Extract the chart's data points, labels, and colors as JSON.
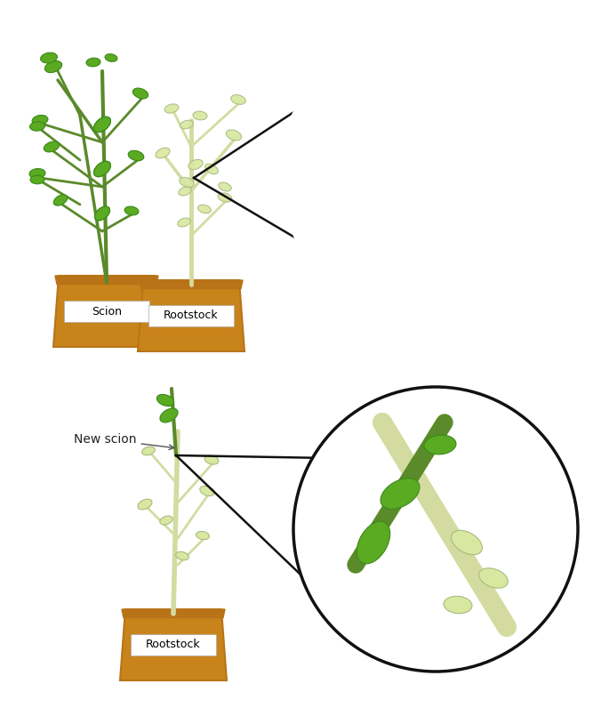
{
  "background_color": "#ffffff",
  "pot_color": "#c8841a",
  "pot_rim_color": "#b87318",
  "pot_label_color": "#000000",
  "stem_green": "#5a8a2a",
  "stem_light": "#d4dba0",
  "leaf_green": "#5aaa22",
  "leaf_light": "#d8e8a0",
  "leaf_dark_green": "#3a8a18",
  "circle_outline": "#111111",
  "line_color": "#111111",
  "label_scion": "Scion",
  "label_rootstock": "Rootstock",
  "label_new_scion": "New scion",
  "figure_width": 6.85,
  "figure_height": 7.96
}
